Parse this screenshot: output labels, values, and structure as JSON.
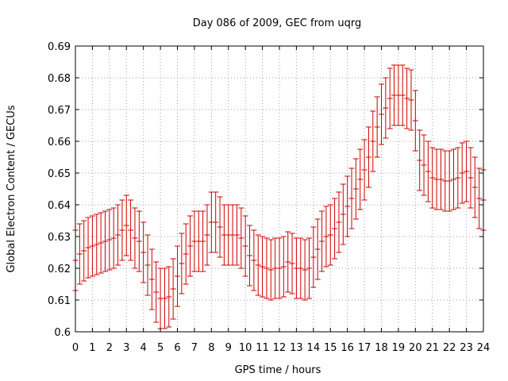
{
  "chart_data": {
    "type": "line",
    "title": "Day 086 of 2009, GEC from uqrg",
    "xlabel": "GPS time / hours",
    "ylabel": "Global Electron Content / GECUs",
    "xlim": [
      0,
      24
    ],
    "ylim": [
      0.6,
      0.69
    ],
    "grid": true,
    "xticks": [
      "0",
      "1",
      "2",
      "3",
      "4",
      "5",
      "6",
      "7",
      "8",
      "9",
      "10",
      "11",
      "12",
      "13",
      "14",
      "15",
      "16",
      "17",
      "18",
      "19",
      "20",
      "21",
      "22",
      "23",
      "24"
    ],
    "yticks": [
      "0.6",
      "0.61",
      "0.62",
      "0.63",
      "0.64",
      "0.65",
      "0.66",
      "0.67",
      "0.68",
      "0.69"
    ],
    "series": [
      {
        "style": "errorbars",
        "color": "#cc0000",
        "x": [
          0,
          0.25,
          0.5,
          0.75,
          1,
          1.25,
          1.5,
          1.75,
          2,
          2.25,
          2.5,
          2.75,
          3,
          3.25,
          3.5,
          3.75,
          4,
          4.25,
          4.5,
          4.75,
          5,
          5.25,
          5.5,
          5.75,
          6,
          6.25,
          6.5,
          6.75,
          7,
          7.25,
          7.5,
          7.75,
          8,
          8.25,
          8.5,
          8.75,
          9,
          9.25,
          9.5,
          9.75,
          10,
          10.25,
          10.5,
          10.75,
          11,
          11.25,
          11.5,
          11.75,
          12,
          12.25,
          12.5,
          12.75,
          13,
          13.25,
          13.5,
          13.75,
          14,
          14.25,
          14.5,
          14.75,
          15,
          15.25,
          15.5,
          15.75,
          16,
          16.25,
          16.5,
          16.75,
          17,
          17.25,
          17.5,
          17.75,
          18,
          18.25,
          18.5,
          18.75,
          19,
          19.25,
          19.5,
          19.75,
          20,
          20.25,
          20.5,
          20.75,
          21,
          21.25,
          21.5,
          21.75,
          22,
          22.25,
          22.5,
          22.75,
          23,
          23.25,
          23.5,
          23.75,
          24
        ],
        "y": [
          0.6225,
          0.6245,
          0.6255,
          0.6265,
          0.627,
          0.6275,
          0.628,
          0.6285,
          0.629,
          0.6295,
          0.6305,
          0.632,
          0.6335,
          0.632,
          0.6295,
          0.6285,
          0.625,
          0.621,
          0.6165,
          0.6125,
          0.6105,
          0.6105,
          0.611,
          0.6135,
          0.6175,
          0.6215,
          0.6245,
          0.627,
          0.6285,
          0.6285,
          0.6285,
          0.6305,
          0.6345,
          0.6345,
          0.633,
          0.6305,
          0.6305,
          0.6305,
          0.6305,
          0.6295,
          0.627,
          0.624,
          0.6225,
          0.621,
          0.6205,
          0.62,
          0.6195,
          0.62,
          0.62,
          0.6205,
          0.622,
          0.6215,
          0.62,
          0.62,
          0.6195,
          0.62,
          0.6235,
          0.626,
          0.6285,
          0.63,
          0.6305,
          0.6325,
          0.6345,
          0.637,
          0.6395,
          0.642,
          0.645,
          0.648,
          0.651,
          0.655,
          0.66,
          0.6645,
          0.6685,
          0.6705,
          0.6735,
          0.6745,
          0.6745,
          0.6745,
          0.6735,
          0.673,
          0.6665,
          0.654,
          0.6525,
          0.6505,
          0.6485,
          0.648,
          0.648,
          0.6475,
          0.6475,
          0.648,
          0.6485,
          0.65,
          0.6505,
          0.6485,
          0.6455,
          0.642,
          0.6415
        ],
        "err": [
          0.0095,
          0.0095,
          0.0095,
          0.0095,
          0.0095,
          0.0095,
          0.0095,
          0.0095,
          0.0095,
          0.0095,
          0.0095,
          0.0095,
          0.0095,
          0.0095,
          0.0095,
          0.0095,
          0.0095,
          0.0095,
          0.0095,
          0.0095,
          0.0095,
          0.0095,
          0.0095,
          0.0095,
          0.0095,
          0.0095,
          0.0095,
          0.0095,
          0.0095,
          0.0095,
          0.0095,
          0.0095,
          0.0095,
          0.0095,
          0.0095,
          0.0095,
          0.0095,
          0.0095,
          0.0095,
          0.0095,
          0.0095,
          0.0095,
          0.0095,
          0.0095,
          0.0095,
          0.0095,
          0.0095,
          0.0095,
          0.0095,
          0.0095,
          0.0095,
          0.0095,
          0.0095,
          0.0095,
          0.0095,
          0.0095,
          0.0095,
          0.0095,
          0.0095,
          0.0095,
          0.0095,
          0.0095,
          0.0095,
          0.0095,
          0.0095,
          0.0095,
          0.0095,
          0.0095,
          0.0095,
          0.0095,
          0.0095,
          0.0095,
          0.0095,
          0.0095,
          0.0095,
          0.0095,
          0.0095,
          0.0095,
          0.0095,
          0.0095,
          0.0095,
          0.0095,
          0.0095,
          0.0095,
          0.0095,
          0.0095,
          0.0095,
          0.0095,
          0.0095,
          0.0095,
          0.0095,
          0.0095,
          0.0095,
          0.0095,
          0.0095,
          0.0095,
          0.0095
        ]
      }
    ]
  }
}
